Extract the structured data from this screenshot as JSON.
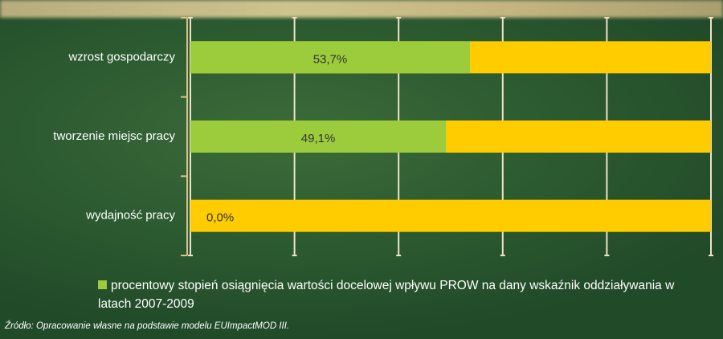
{
  "chart_data": {
    "type": "bar",
    "orientation": "horizontal",
    "categories": [
      "wzrost gospodarczy",
      "tworzenie miejsc pracy",
      "wydajność pracy"
    ],
    "series": [
      {
        "name": "procentowy stopień osiągnięcia wartości docelowej wpływu PROW na dany wskaźnik oddziaływania w latach 2007-2009",
        "color": "#9ccc3c",
        "values": [
          53.7,
          49.1,
          0.0
        ],
        "value_labels": [
          "53,7%",
          "49,1%",
          "0,0%"
        ]
      }
    ],
    "track_color": "#ffcc00",
    "xlim": [
      0,
      100
    ],
    "xticks": [
      0,
      20,
      40,
      60,
      80,
      100
    ],
    "grid": true,
    "source": "Źródło: Opracowanie własne na podstawie modelu EUImpactMOD III."
  }
}
